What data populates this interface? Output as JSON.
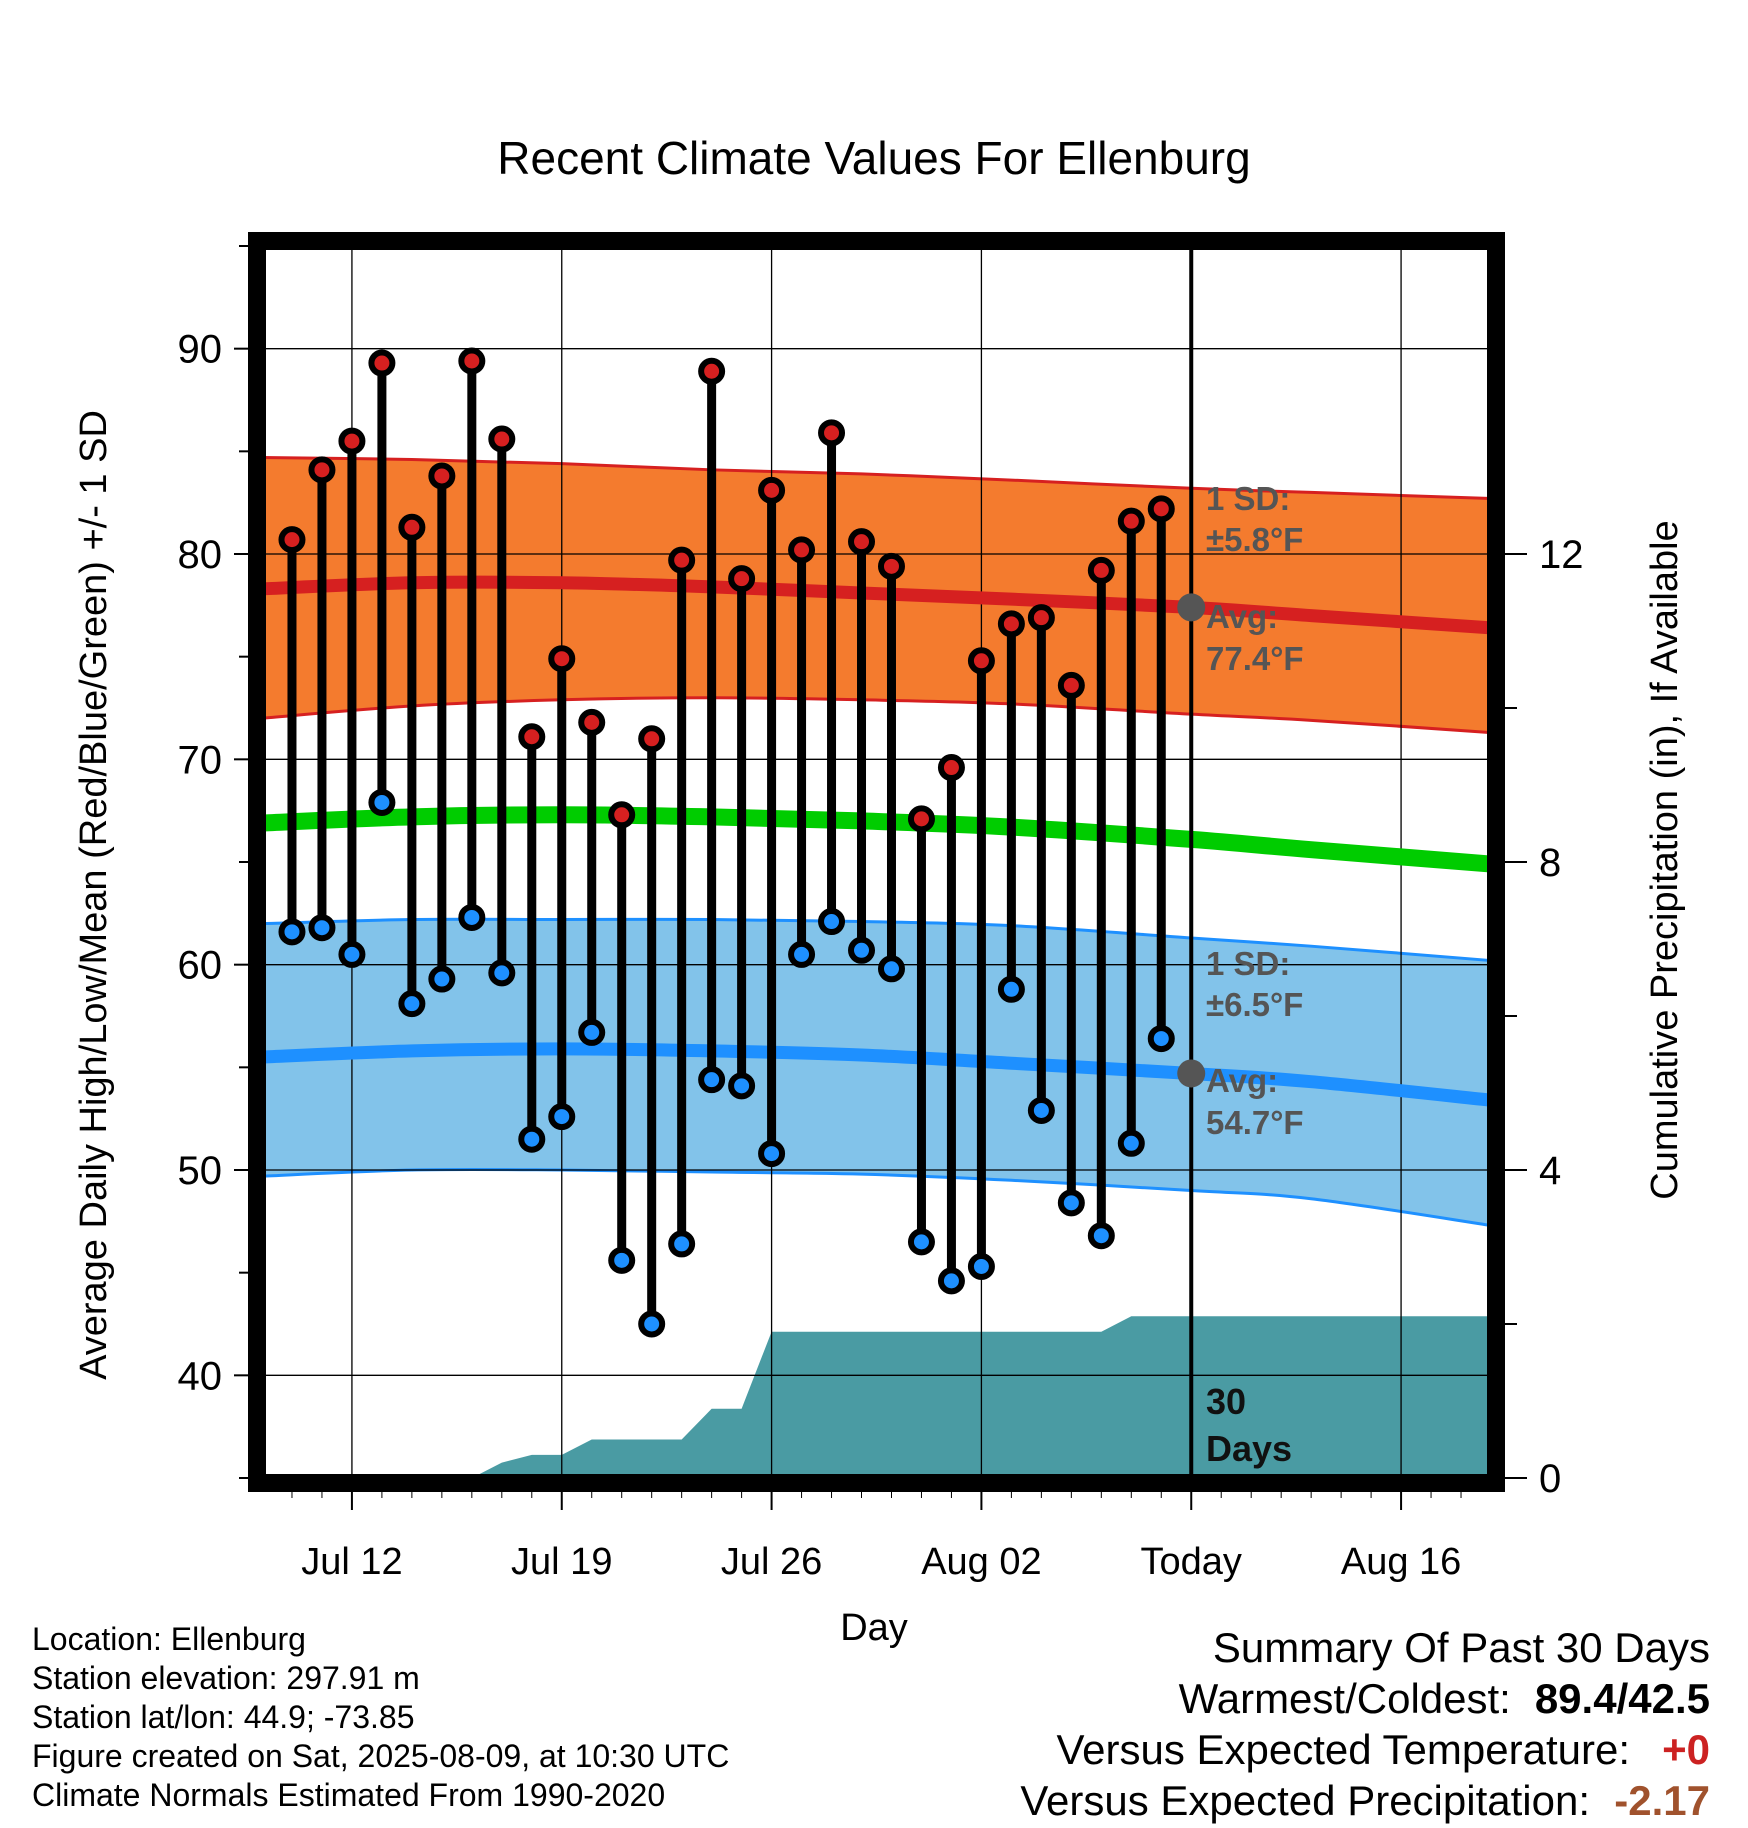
{
  "chart_data": {
    "type": "line",
    "title": "Recent Climate Values For Ellenburg",
    "xlabel": "Day",
    "ylabel_left": "Average Daily High/Low/Mean (Red/Blue/Green) +/- 1 SD",
    "ylabel_right": "Cumulative Precipitation (in), If Available",
    "x_tick_labels": [
      "Jul 12",
      "Jul 19",
      "Jul 26",
      "Aug 02",
      "Today",
      "Aug 16"
    ],
    "x_tick_days": [
      3,
      10,
      17,
      24,
      31,
      38
    ],
    "days_axis_range": [
      0,
      41
    ],
    "ylim_left": [
      35,
      95
    ],
    "yticks_left": [
      40,
      50,
      60,
      70,
      80,
      90
    ],
    "ylim_right": [
      0,
      16
    ],
    "yticks_right": [
      0,
      4,
      8,
      12
    ],
    "series": [
      {
        "name": "Daily High",
        "color": "#d62020",
        "x": [
          1,
          2,
          3,
          4,
          5,
          6,
          7,
          8,
          9,
          10,
          11,
          12,
          13,
          14,
          15,
          16,
          17,
          18,
          19,
          20,
          21,
          22,
          23,
          24,
          25,
          26,
          27,
          28,
          29,
          30
        ],
        "values": [
          80.7,
          84.1,
          85.5,
          89.3,
          81.3,
          83.8,
          89.4,
          85.6,
          71.1,
          74.9,
          71.8,
          67.3,
          71.0,
          79.7,
          88.9,
          78.8,
          83.1,
          80.2,
          85.9,
          80.6,
          79.4,
          67.1,
          69.6,
          74.8,
          76.6,
          76.9,
          73.6,
          79.2,
          81.6,
          82.2
        ]
      },
      {
        "name": "Daily Low",
        "color": "#1e90ff",
        "x": [
          1,
          2,
          3,
          4,
          5,
          6,
          7,
          8,
          9,
          10,
          11,
          12,
          13,
          14,
          15,
          16,
          17,
          18,
          19,
          20,
          21,
          22,
          23,
          24,
          25,
          26,
          27,
          28,
          29,
          30
        ],
        "values": [
          61.6,
          61.8,
          60.5,
          67.9,
          58.1,
          59.3,
          62.3,
          59.6,
          51.5,
          52.6,
          56.7,
          45.6,
          42.5,
          46.4,
          54.4,
          54.1,
          50.8,
          60.5,
          62.1,
          60.7,
          59.8,
          46.5,
          44.6,
          45.3,
          58.8,
          52.9,
          48.4,
          46.8,
          51.3,
          56.4
        ]
      },
      {
        "name": "Normal High",
        "color": "#d62020",
        "x": [
          0,
          5,
          10,
          15,
          20,
          25,
          31,
          35,
          41
        ],
        "values": [
          78.3,
          78.6,
          78.6,
          78.4,
          78.1,
          77.8,
          77.4,
          77.0,
          76.4
        ]
      },
      {
        "name": "Normal High SD Band",
        "color": "#f47b2e",
        "x": [
          0,
          5,
          10,
          15,
          20,
          25,
          31,
          35,
          41
        ],
        "upper": [
          84.7,
          84.6,
          84.4,
          84.1,
          83.9,
          83.6,
          83.2,
          83.0,
          82.7
        ],
        "lower": [
          72.0,
          72.6,
          72.9,
          73.0,
          72.9,
          72.7,
          72.2,
          71.9,
          71.3
        ]
      },
      {
        "name": "Normal Mean",
        "color": "#00cc00",
        "x": [
          0,
          5,
          10,
          15,
          20,
          25,
          31,
          35,
          41
        ],
        "values": [
          66.9,
          67.2,
          67.3,
          67.2,
          67.0,
          66.7,
          66.1,
          65.6,
          64.9
        ]
      },
      {
        "name": "Normal Low",
        "color": "#1e90ff",
        "x": [
          0,
          5,
          10,
          15,
          20,
          25,
          31,
          35,
          41
        ],
        "values": [
          55.5,
          55.8,
          55.9,
          55.8,
          55.6,
          55.2,
          54.7,
          54.3,
          53.4
        ]
      },
      {
        "name": "Normal Low SD Band",
        "color": "#82c3ea",
        "x": [
          0,
          5,
          10,
          15,
          20,
          25,
          31,
          35,
          41
        ],
        "upper": [
          62.0,
          62.2,
          62.2,
          62.2,
          62.1,
          61.9,
          61.3,
          60.9,
          60.2
        ],
        "lower": [
          49.7,
          50.0,
          50.0,
          49.9,
          49.8,
          49.5,
          49.0,
          48.6,
          47.3
        ]
      },
      {
        "name": "Cumulative Precipitation",
        "color": "#4a9ba3",
        "x": [
          0,
          7,
          8,
          9,
          10,
          11,
          12,
          13,
          14,
          15,
          16,
          17,
          18,
          19,
          20,
          21,
          22,
          23,
          24,
          25,
          26,
          27,
          28,
          29,
          30,
          31,
          41
        ],
        "values": [
          0,
          0,
          0.2,
          0.3,
          0.3,
          0.5,
          0.5,
          0.5,
          0.5,
          0.9,
          0.9,
          1.9,
          1.9,
          1.9,
          1.9,
          1.9,
          1.9,
          1.9,
          1.9,
          1.9,
          1.9,
          1.9,
          1.9,
          2.1,
          2.1,
          2.1,
          2.1
        ]
      }
    ],
    "annotations": {
      "high_sd": [
        "1 SD:",
        "±5.8°F"
      ],
      "high_avg": [
        "Avg:",
        "77.4°F"
      ],
      "low_sd": [
        "1 SD:",
        "±6.5°F"
      ],
      "low_avg": [
        "Avg:",
        "54.7°F"
      ],
      "window": [
        "30",
        "Days"
      ],
      "today_day": 31,
      "today_high_avg": 77.4,
      "today_low_avg": 54.7
    }
  },
  "footer": {
    "location": "Location: Ellenburg",
    "elevation": "Station elevation: 297.91 m",
    "latlon": "Station lat/lon: 44.9; -73.85",
    "created": "Figure created on Sat, 2025-08-09, at 10:30 UTC",
    "normals": "Climate Normals Estimated From 1990-2020"
  },
  "summary": {
    "title": "Summary Of Past 30 Days",
    "warm_cold_label": "Warmest/Coldest:",
    "warm_cold_value": "89.4/42.5",
    "temp_label": "Versus Expected Temperature:",
    "temp_value": "+0",
    "temp_color": "#cc2222",
    "precip_label": "Versus Expected Precipitation:",
    "precip_value": "-2.17",
    "precip_color": "#a0522d"
  }
}
